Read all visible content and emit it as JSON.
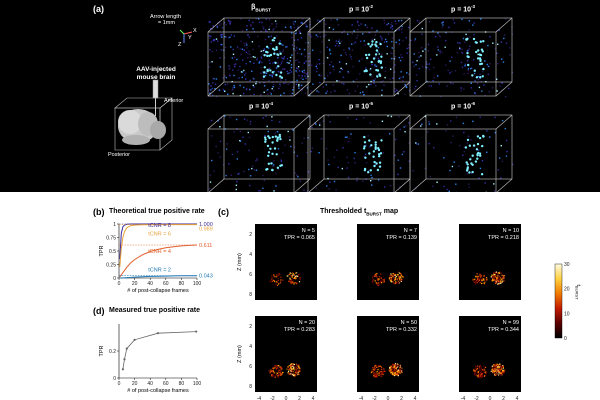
{
  "panel_a": {
    "label": "(a)",
    "arrow_text_1": "Arrow length",
    "arrow_text_2": "= 1mm",
    "axis_x": "X",
    "axis_y": "Y",
    "axis_z": "Z",
    "specimen_1": "AAV-injected",
    "specimen_2": "mouse brain",
    "anterior": "Anterior",
    "posterior": "Posterior",
    "cubes": [
      {
        "title": "β",
        "title_sub": "BURST"
      },
      {
        "title": "p = 10",
        "title_sup": "-2"
      },
      {
        "title": "p = 10",
        "title_sup": "-3"
      },
      {
        "title": "p = 10",
        "title_sup": "-4"
      },
      {
        "title": "p = 10",
        "title_sup": "-5"
      },
      {
        "title": "p = 10",
        "title_sup": "-6"
      }
    ]
  },
  "panel_b": {
    "label": "(b)",
    "title": "Theoretical true positive rate",
    "ylabel": "TPR",
    "xlabel": "# of post-collapse frames",
    "curves": [
      {
        "label": "tCNR = 8",
        "value": "1.000"
      },
      {
        "label": "tCNR = 6",
        "value": "0.989"
      },
      {
        "label": "tCNR = 4",
        "value": "0.611"
      },
      {
        "label": "tCNR = 2",
        "value": "0.043"
      }
    ]
  },
  "panel_c": {
    "label": "(c)",
    "title": "Thresholded t",
    "title_sub": "BURST",
    "title_tail": " map",
    "xlabel": "X (mm)",
    "ylabel": "Z (mm)",
    "colorbar_label": "t",
    "colorbar_sub": "BURST",
    "colorbar_ticks": [
      "30",
      "20",
      "10",
      "0"
    ],
    "xticks": [
      "-4",
      "-2",
      "0",
      "2",
      "4"
    ],
    "yticks": [
      "2",
      "4",
      "6",
      "8"
    ]
  },
  "panel_d": {
    "label": "(d)",
    "title": "Measured true positive rate",
    "ylabel": "TPR",
    "xlabel": "# of post-collapse frames"
  },
  "chart_data": [
    {
      "type": "line",
      "title": "Theoretical true positive rate",
      "xlabel": "# of post-collapse frames",
      "ylabel": "TPR",
      "xlim": [
        0,
        100
      ],
      "ylim": [
        0,
        1
      ],
      "x_ticks": [
        0,
        20,
        40,
        60,
        80,
        100
      ],
      "y_ticks": [
        0,
        0.25,
        0.5,
        0.75,
        1
      ],
      "x": [
        1,
        3,
        5,
        7,
        10,
        15,
        20,
        30,
        40,
        50,
        60,
        70,
        80,
        90,
        100
      ],
      "series": [
        {
          "name": "tCNR = 8",
          "color": "#3b2a9c",
          "asymptote": 1.0,
          "values": [
            0.35,
            0.83,
            0.95,
            0.98,
            0.995,
            1.0,
            1.0,
            1.0,
            1.0,
            1.0,
            1.0,
            1.0,
            1.0,
            1.0,
            1.0
          ]
        },
        {
          "name": "tCNR = 6",
          "color": "#e8a33a",
          "asymptote": 0.989,
          "values": [
            0.2,
            0.55,
            0.75,
            0.86,
            0.93,
            0.97,
            0.98,
            0.985,
            0.987,
            0.988,
            0.989,
            0.989,
            0.989,
            0.989,
            0.989
          ]
        },
        {
          "name": "tCNR = 4",
          "color": "#e0602d",
          "asymptote": 0.611,
          "values": [
            0.02,
            0.06,
            0.1,
            0.14,
            0.2,
            0.28,
            0.34,
            0.43,
            0.49,
            0.53,
            0.56,
            0.58,
            0.595,
            0.603,
            0.611
          ]
        },
        {
          "name": "tCNR = 2",
          "color": "#1f77b4",
          "asymptote": 0.043,
          "values": [
            0.0,
            0.0,
            0.002,
            0.004,
            0.007,
            0.012,
            0.017,
            0.024,
            0.029,
            0.033,
            0.036,
            0.038,
            0.04,
            0.042,
            0.043
          ]
        }
      ]
    },
    {
      "type": "line",
      "title": "Measured true positive rate",
      "xlabel": "# of post-collapse frames",
      "ylabel": "TPR",
      "xlim": [
        0,
        100
      ],
      "ylim": [
        0,
        0.4
      ],
      "x_ticks": [
        0,
        20,
        40,
        60,
        80,
        100
      ],
      "y_ticks": [
        0,
        0.2
      ],
      "x": [
        5,
        7,
        10,
        20,
        50,
        99
      ],
      "series": [
        {
          "name": "Measured",
          "color": "#666666",
          "values": [
            0.065,
            0.139,
            0.218,
            0.283,
            0.332,
            0.344
          ]
        }
      ]
    },
    {
      "type": "heatmap",
      "title": "Thresholded tBURST map",
      "panels": [
        {
          "N": "N = 5",
          "TPR": "TPR = 0.065",
          "density": 0.065
        },
        {
          "N": "N = 7",
          "TPR": "TPR = 0.139",
          "density": 0.139
        },
        {
          "N": "N = 10",
          "TPR": "TPR = 0.218",
          "density": 0.218
        },
        {
          "N": "N = 20",
          "TPR": "TPR = 0.283",
          "density": 0.283
        },
        {
          "N": "N = 50",
          "TPR": "TPR = 0.332",
          "density": 0.332
        },
        {
          "N": "N = 99",
          "TPR": "TPR = 0.344",
          "density": 0.344
        }
      ],
      "colorbar_range": [
        0,
        30
      ]
    }
  ]
}
